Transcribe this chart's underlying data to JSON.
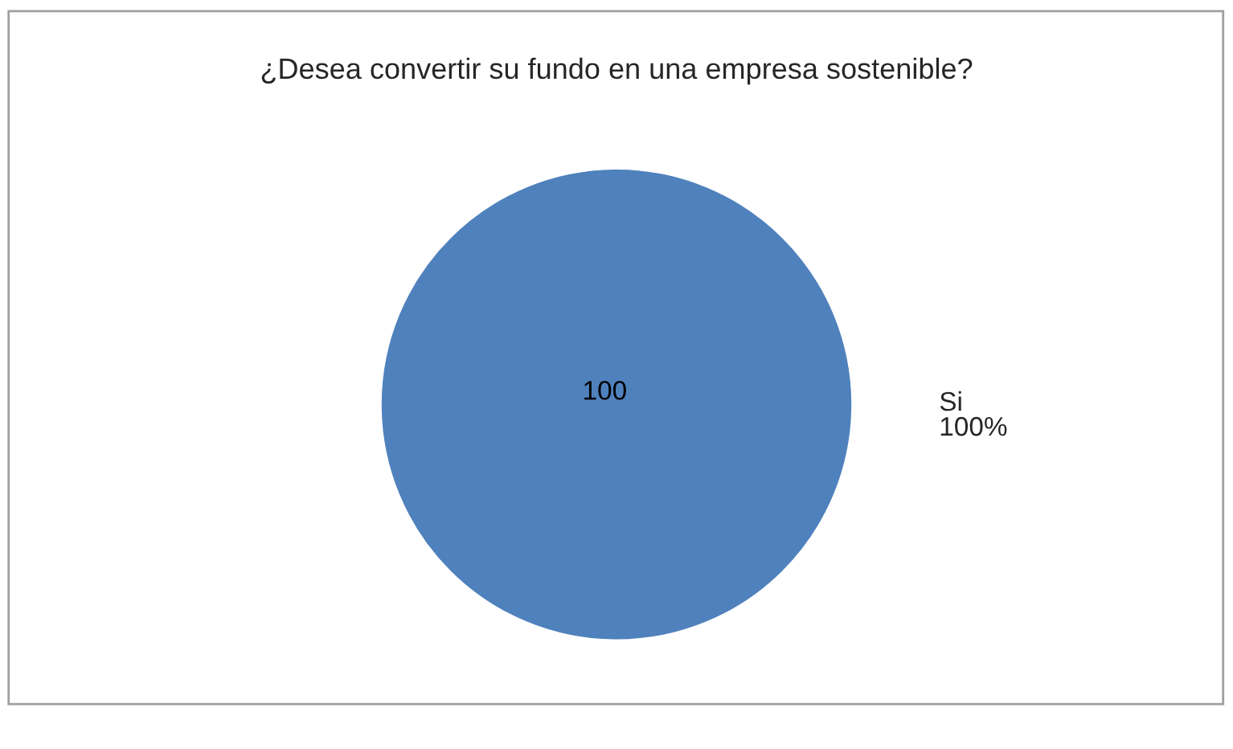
{
  "chart_data": {
    "type": "pie",
    "title": "¿Desea convertir su fundo en una empresa sostenible?",
    "categories": [
      "Si"
    ],
    "values": [
      100
    ],
    "colors": [
      "#4f81bd"
    ],
    "data_labels": true,
    "annotations": [
      {
        "text": "100%",
        "x": "Si"
      }
    ]
  }
}
